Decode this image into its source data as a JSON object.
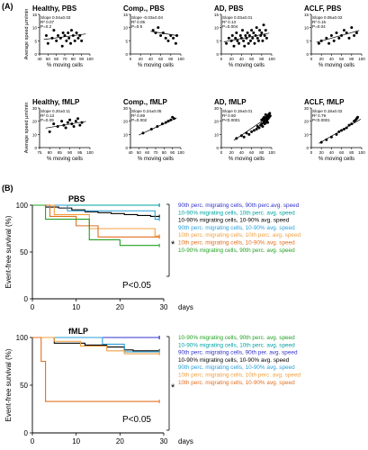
{
  "panels": {
    "a": "(A)",
    "b": "(B)"
  },
  "chart_data": [
    {
      "type": "scatter",
      "title": "Healthy, PBS",
      "annotation": [
        "Slope 0.04±0.03",
        "R² 0.07",
        "P=0.2"
      ],
      "xlabel": "% moving cells",
      "ylabel": "Average speed μm/min",
      "xlim": [
        40,
        100
      ],
      "ylim": [
        0,
        15
      ],
      "xticks": [
        "40",
        "50",
        "60",
        "70",
        "80",
        "90",
        "100"
      ],
      "yticks": [
        "0",
        "5",
        "10",
        "15"
      ],
      "points": [
        [
          48,
          7
        ],
        [
          50,
          4
        ],
        [
          55,
          6
        ],
        [
          57,
          9
        ],
        [
          60,
          5
        ],
        [
          62,
          7
        ],
        [
          65,
          6
        ],
        [
          67,
          3
        ],
        [
          68,
          8
        ],
        [
          70,
          7
        ],
        [
          72,
          5
        ],
        [
          74,
          8
        ],
        [
          75,
          6
        ],
        [
          77,
          4
        ],
        [
          78,
          9
        ],
        [
          80,
          7
        ],
        [
          82,
          5
        ],
        [
          84,
          8
        ],
        [
          86,
          6
        ],
        [
          88,
          7
        ],
        [
          90,
          5
        ]
      ],
      "fit": [
        [
          45,
          5.5
        ],
        [
          95,
          7.6
        ]
      ]
    },
    {
      "type": "scatter",
      "title": "Comp., PBS",
      "annotation": [
        "Slope -0.03±0.04",
        "R² 0.05",
        "P=0.5"
      ],
      "xlabel": "% moving cells",
      "xlim": [
        0,
        100
      ],
      "ylim": [
        0,
        15
      ],
      "xticks": [
        "0",
        "20",
        "40",
        "60",
        "80",
        "100"
      ],
      "yticks": [
        "0",
        "5",
        "10",
        "15"
      ],
      "points": [
        [
          45,
          9
        ],
        [
          50,
          8
        ],
        [
          55,
          10
        ],
        [
          60,
          7
        ],
        [
          65,
          8
        ],
        [
          70,
          6
        ],
        [
          75,
          5
        ],
        [
          80,
          7
        ],
        [
          85,
          6
        ],
        [
          90,
          4
        ],
        [
          92,
          7
        ]
      ],
      "fit": [
        [
          40,
          8.6
        ],
        [
          95,
          6.9
        ]
      ]
    },
    {
      "type": "scatter",
      "title": "AD, PBS",
      "annotation": [
        "Slope 0.03±0.01",
        "R² 0.13",
        "P=0.004"
      ],
      "xlabel": "% moving cells",
      "xlim": [
        0,
        100
      ],
      "ylim": [
        0,
        15
      ],
      "xticks": [
        "0",
        "20",
        "40",
        "60",
        "80",
        "100"
      ],
      "yticks": [
        "0",
        "5",
        "10",
        "15"
      ],
      "points": [
        [
          10,
          4
        ],
        [
          15,
          6
        ],
        [
          20,
          5
        ],
        [
          22,
          7
        ],
        [
          25,
          3
        ],
        [
          28,
          6
        ],
        [
          30,
          8
        ],
        [
          32,
          5
        ],
        [
          35,
          4
        ],
        [
          38,
          7
        ],
        [
          40,
          6
        ],
        [
          42,
          9
        ],
        [
          44,
          5
        ],
        [
          46,
          3
        ],
        [
          48,
          7
        ],
        [
          50,
          6
        ],
        [
          52,
          8
        ],
        [
          54,
          4
        ],
        [
          56,
          7
        ],
        [
          58,
          5
        ],
        [
          60,
          9
        ],
        [
          62,
          6
        ],
        [
          64,
          8
        ],
        [
          66,
          4
        ],
        [
          68,
          7
        ],
        [
          70,
          10
        ],
        [
          72,
          6
        ],
        [
          74,
          5
        ],
        [
          76,
          9
        ],
        [
          78,
          7
        ],
        [
          80,
          8
        ],
        [
          82,
          5
        ],
        [
          84,
          11
        ],
        [
          86,
          7
        ],
        [
          88,
          9
        ],
        [
          90,
          6
        ]
      ],
      "fit": [
        [
          5,
          4.6
        ],
        [
          95,
          7.9
        ]
      ]
    },
    {
      "type": "scatter",
      "title": "ACLF, PBS",
      "annotation": [
        "Slope 0.05±0.02",
        "R² 0.15",
        "P=0.04"
      ],
      "xlabel": "% moving cells",
      "xlim": [
        0,
        100
      ],
      "ylim": [
        0,
        15
      ],
      "xticks": [
        "0",
        "20",
        "40",
        "60",
        "80",
        "100"
      ],
      "yticks": [
        "0",
        "5",
        "10",
        "15"
      ],
      "points": [
        [
          15,
          4
        ],
        [
          20,
          5
        ],
        [
          30,
          6
        ],
        [
          35,
          4
        ],
        [
          40,
          7
        ],
        [
          45,
          5
        ],
        [
          50,
          8
        ],
        [
          55,
          6
        ],
        [
          60,
          7
        ],
        [
          65,
          9
        ],
        [
          70,
          8
        ],
        [
          75,
          6
        ],
        [
          80,
          10
        ],
        [
          85,
          7
        ],
        [
          90,
          8
        ]
      ],
      "fit": [
        [
          10,
          4.4
        ],
        [
          95,
          8.9
        ]
      ]
    },
    {
      "type": "scatter",
      "title": "Healthy, fMLP",
      "annotation": [
        "Slope 0.20±0.11",
        "R² 0.13",
        "P=0.09"
      ],
      "xlabel": "% moving cells",
      "ylabel": "Average speed μm/min",
      "xlim": [
        75,
        100
      ],
      "ylim": [
        0,
        30
      ],
      "xticks": [
        "75",
        "80",
        "85",
        "90",
        "95",
        "100"
      ],
      "yticks": [
        "0",
        "10",
        "20",
        "30"
      ],
      "points": [
        [
          80,
          12
        ],
        [
          82,
          18
        ],
        [
          84,
          16
        ],
        [
          86,
          20
        ],
        [
          87,
          17
        ],
        [
          88,
          15
        ],
        [
          89,
          19
        ],
        [
          90,
          21
        ],
        [
          91,
          18
        ],
        [
          92,
          16
        ],
        [
          93,
          20
        ],
        [
          94,
          22
        ],
        [
          95,
          17
        ],
        [
          96,
          19
        ]
      ],
      "fit": [
        [
          78,
          14.8
        ],
        [
          98,
          19.8
        ]
      ]
    },
    {
      "type": "scatter",
      "title": "Comp., fMLP",
      "annotation": [
        "Slope 0.24±0.05",
        "R² 0.69",
        "P=0.002"
      ],
      "xlabel": "% moving cells",
      "xlim": [
        40,
        100
      ],
      "ylim": [
        0,
        30
      ],
      "xticks": [
        "40",
        "50",
        "60",
        "70",
        "80",
        "90",
        "100"
      ],
      "yticks": [
        "0",
        "10",
        "20",
        "30"
      ],
      "points": [
        [
          55,
          11
        ],
        [
          65,
          14
        ],
        [
          72,
          16
        ],
        [
          78,
          18
        ],
        [
          82,
          19
        ],
        [
          85,
          20
        ],
        [
          88,
          21
        ],
        [
          90,
          23
        ],
        [
          92,
          22
        ]
      ],
      "fit": [
        [
          50,
          9.5
        ],
        [
          95,
          22.5
        ]
      ]
    },
    {
      "type": "scatter",
      "title": "AD, fMLP",
      "annotation": [
        "Slope 0.19±0.01",
        "R² 0.60",
        "P<0.0001"
      ],
      "xlabel": "% moving cells",
      "xlim": [
        0,
        100
      ],
      "ylim": [
        0,
        30
      ],
      "xticks": [
        "0",
        "20",
        "40",
        "60",
        "80",
        "100"
      ],
      "yticks": [
        "0",
        "10",
        "20",
        "30"
      ],
      "points": [
        [
          30,
          7
        ],
        [
          40,
          9
        ],
        [
          45,
          8
        ],
        [
          50,
          11
        ],
        [
          55,
          10
        ],
        [
          60,
          12
        ],
        [
          65,
          13
        ],
        [
          70,
          14
        ],
        [
          72,
          16
        ],
        [
          75,
          15
        ],
        [
          78,
          17
        ],
        [
          80,
          18
        ],
        [
          82,
          16
        ],
        [
          84,
          19
        ],
        [
          85,
          20
        ],
        [
          86,
          18
        ],
        [
          87,
          21
        ],
        [
          88,
          22
        ],
        [
          89,
          20
        ],
        [
          90,
          23
        ],
        [
          91,
          21
        ],
        [
          92,
          24
        ],
        [
          93,
          22
        ],
        [
          94,
          25
        ],
        [
          95,
          23
        ],
        [
          96,
          26
        ],
        [
          97,
          24
        ],
        [
          85,
          23
        ],
        [
          88,
          25
        ],
        [
          90,
          19
        ],
        [
          92,
          19
        ],
        [
          80,
          21
        ],
        [
          83,
          22
        ]
      ],
      "fit": [
        [
          25,
          5.5
        ],
        [
          98,
          24.5
        ]
      ]
    },
    {
      "type": "scatter",
      "title": "ACLF, fMLP",
      "annotation": [
        "Slope 0.18±0.02",
        "R² 0.79",
        "P<0.0001"
      ],
      "xlabel": "% moving cells",
      "xlim": [
        0,
        100
      ],
      "ylim": [
        0,
        30
      ],
      "xticks": [
        "0",
        "20",
        "40",
        "60",
        "80",
        "100"
      ],
      "yticks": [
        "0",
        "10",
        "20",
        "30"
      ],
      "points": [
        [
          20,
          4
        ],
        [
          30,
          6
        ],
        [
          40,
          8
        ],
        [
          50,
          10
        ],
        [
          55,
          12
        ],
        [
          60,
          13
        ],
        [
          65,
          14
        ],
        [
          70,
          15
        ],
        [
          75,
          17
        ],
        [
          80,
          18
        ],
        [
          85,
          20
        ],
        [
          88,
          21
        ],
        [
          90,
          22
        ],
        [
          92,
          23
        ]
      ],
      "fit": [
        [
          15,
          3.2
        ],
        [
          98,
          21.5
        ]
      ]
    },
    {
      "type": "line",
      "title": "PBS",
      "xlabel": "days",
      "ylabel": "Event-free survival (%)",
      "xlim": [
        0,
        30
      ],
      "ylim": [
        0,
        100
      ],
      "xticks": [
        "0",
        "10",
        "20",
        "30"
      ],
      "yticks": [
        "0",
        "50",
        "100"
      ],
      "p_value": "P<0.05",
      "star": "*",
      "series": [
        {
          "name": "90th perc. migrating cells, 90th perc.avg. speed",
          "color": "#3333cc",
          "steps": [
            [
              0,
              100
            ],
            [
              29,
              100
            ]
          ]
        },
        {
          "name": "10-90% migrating cells, 10th perc. avg. speed",
          "color": "#00a2a2",
          "steps": [
            [
              0,
              100
            ],
            [
              29,
              100
            ]
          ]
        },
        {
          "name": "10-90% migrating cells, 10-90% avg. speed",
          "color": "#000000",
          "steps": [
            [
              0,
              100
            ],
            [
              3,
              98
            ],
            [
              6,
              97
            ],
            [
              9,
              95
            ],
            [
              12,
              93
            ],
            [
              15,
              92
            ],
            [
              18,
              91
            ],
            [
              21,
              90
            ],
            [
              24,
              89
            ],
            [
              27,
              88
            ],
            [
              29,
              88
            ]
          ]
        },
        {
          "name": "90th perc. migrating cells, 10-90% avg. speed",
          "color": "#2a9fd6",
          "steps": [
            [
              0,
              100
            ],
            [
              8,
              94
            ],
            [
              27,
              94
            ],
            [
              28,
              85
            ],
            [
              29,
              85
            ]
          ]
        },
        {
          "name": "10th perc. migrating cells, 10th perc. avg. speed",
          "color": "#f0a040",
          "steps": [
            [
              0,
              100
            ],
            [
              5,
              90
            ],
            [
              13,
              75
            ],
            [
              27,
              75
            ],
            [
              28,
              67
            ],
            [
              29,
              67
            ]
          ]
        },
        {
          "name": "10th perc. migrating cells, 10-90% avg. speed",
          "color": "#e07020",
          "steps": [
            [
              0,
              100
            ],
            [
              4,
              88
            ],
            [
              10,
              78
            ],
            [
              15,
              66
            ],
            [
              29,
              66
            ]
          ]
        },
        {
          "name": "10-90% migrating cells, 90th perc. avg. speed",
          "color": "#22a022",
          "steps": [
            [
              0,
              100
            ],
            [
              3,
              85
            ],
            [
              13,
              63
            ],
            [
              20,
              57
            ],
            [
              29,
              57
            ]
          ]
        }
      ]
    },
    {
      "type": "line",
      "title": "fMLP",
      "xlabel": "days",
      "ylabel": "Event-free survival (%)",
      "xlim": [
        0,
        30
      ],
      "ylim": [
        0,
        100
      ],
      "xticks": [
        "0",
        "10",
        "20",
        "30"
      ],
      "yticks": [
        "0",
        "50",
        "100"
      ],
      "p_value": "P<0.05",
      "star": "*",
      "series": [
        {
          "name": "10-90% migrating cells, 90th perc. avg. speed",
          "color": "#22a022",
          "steps": [
            [
              0,
              100
            ],
            [
              29,
              100
            ]
          ]
        },
        {
          "name": "10-90% migrating cells, 10th perc. avg. speed",
          "color": "#00a2a2",
          "steps": [
            [
              0,
              100
            ],
            [
              29,
              100
            ]
          ]
        },
        {
          "name": "90th perc. migrating cells, 90th per. avg. speed",
          "color": "#3333cc",
          "steps": [
            [
              0,
              100
            ],
            [
              29,
              100
            ]
          ]
        },
        {
          "name": "10-90% migrating cells, 10-90% avg. speed",
          "color": "#000000",
          "steps": [
            [
              0,
              100
            ],
            [
              5,
              94
            ],
            [
              12,
              92
            ],
            [
              17,
              90
            ],
            [
              21,
              87
            ],
            [
              23,
              86
            ],
            [
              29,
              86
            ]
          ]
        },
        {
          "name": "90th perc. migrating cells, 10-90% avg. speed",
          "color": "#2a9fd6",
          "steps": [
            [
              0,
              100
            ],
            [
              16,
              93
            ],
            [
              21,
              85
            ],
            [
              29,
              85
            ]
          ]
        },
        {
          "name": "10th perc. migrating cells, 10th perc. avg. speed",
          "color": "#f0a040",
          "steps": [
            [
              0,
              100
            ],
            [
              5,
              96
            ],
            [
              11,
              91
            ],
            [
              17,
              86
            ],
            [
              21,
              83
            ],
            [
              29,
              83
            ]
          ]
        },
        {
          "name": "10th perc. migrating cells, 10-90% avg. speed",
          "color": "#e07020",
          "steps": [
            [
              0,
              100
            ],
            [
              2,
              75
            ],
            [
              3,
              33
            ],
            [
              29,
              33
            ]
          ]
        }
      ]
    }
  ]
}
